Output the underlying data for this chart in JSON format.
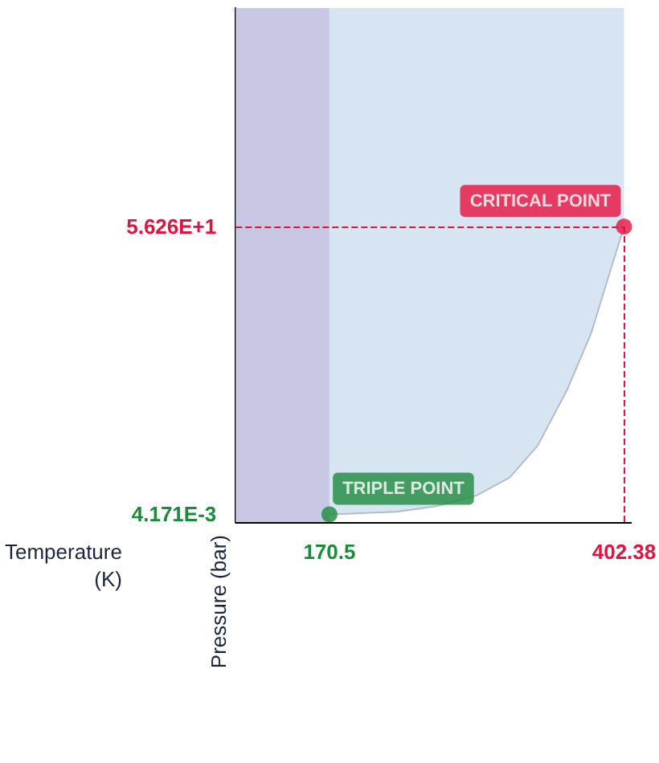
{
  "chart_data": {
    "type": "line",
    "xlabel": "Temperature\n(K)",
    "ylabel": "Pressure (bar)",
    "xlim": [
      96.7,
      408
    ],
    "ylim": [
      -1.5,
      99
    ],
    "xticks": [
      170.5,
      402.38
    ],
    "yticks": [
      {
        "value": 0.004171,
        "label": "4.171E-3"
      },
      {
        "value": 56.26,
        "label": "5.626E+1"
      }
    ],
    "series": [
      {
        "color": "#b4bcc8",
        "x": [
          170.5,
          222.9,
          254.8,
          286.4,
          312.3,
          334.3,
          357.3,
          376.5,
          391.8,
          402.38
        ],
        "values": [
          0.004171,
          0.5,
          1.6,
          3.7,
          7.2,
          13.4,
          24.2,
          35.4,
          47.8,
          56.26
        ],
        "lower": [
          0.004171,
          0.5,
          1.6,
          3.7,
          7.2,
          13.4,
          24.2,
          35.4,
          47.8,
          56.26
        ],
        "upper": [
          99,
          99,
          99,
          99,
          99,
          99,
          99,
          99,
          99,
          99
        ]
      },
      {
        "type": "scatter",
        "x": [
          170.5,
          402.38
        ],
        "values": [
          0.004171,
          56.26
        ],
        "colors": [
          "#1e8a3c",
          "#e8103f"
        ]
      }
    ],
    "bands": [
      {
        "axis": "x",
        "from": 96.7,
        "to": 170.5,
        "color": "#c8c8e4"
      }
    ],
    "ref_lines": [
      {
        "axis": "y",
        "value": 56.26,
        "color": "#e8103f",
        "line_style": "dashed"
      },
      {
        "axis": "x",
        "value": 402.38,
        "color": "#e8103f",
        "line_style": "dashed"
      }
    ],
    "annotations": [
      {
        "text": "TRIPLE POINT",
        "x": 170.5,
        "y": 0.004171
      },
      {
        "text": "CRITICAL POINT",
        "x": 402.38,
        "y": 56.26
      }
    ]
  }
}
